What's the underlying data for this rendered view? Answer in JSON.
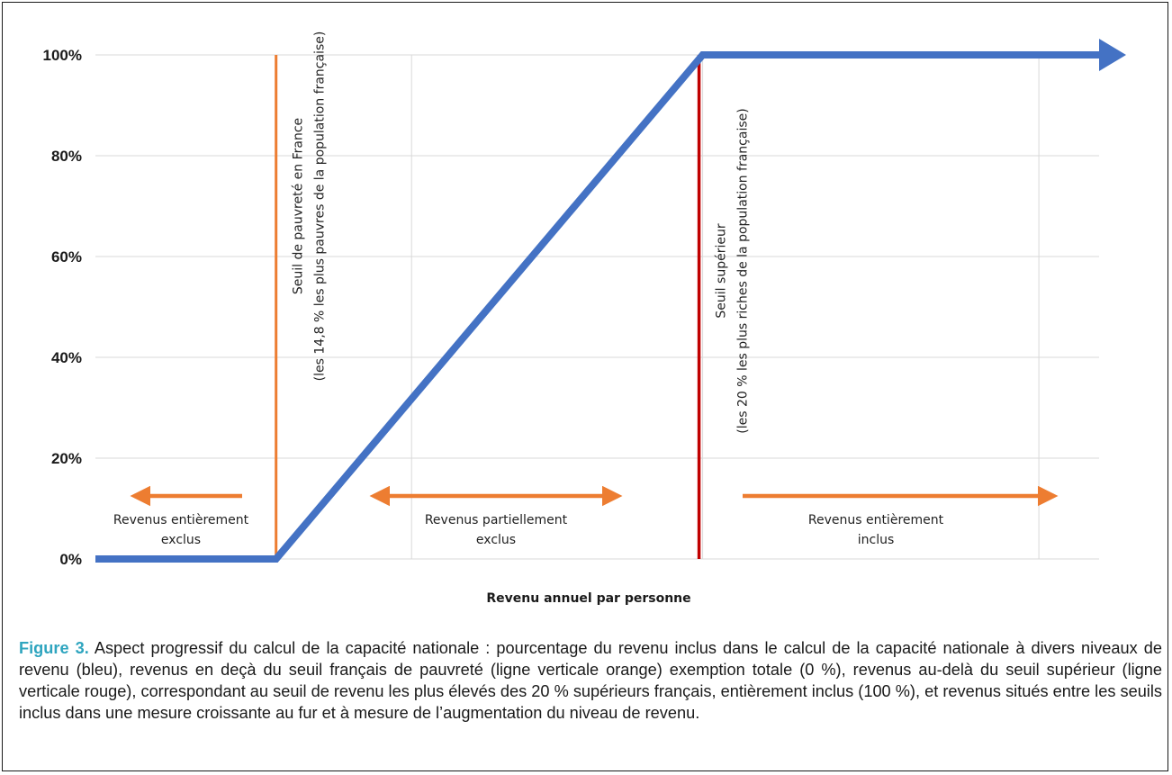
{
  "chart_data": {
    "type": "line",
    "xlabel": "Revenu annuel par personne",
    "ylabel": "",
    "ylim": [
      0,
      100
    ],
    "yticks": [
      "0%",
      "20%",
      "40%",
      "60%",
      "80%",
      "100%"
    ],
    "grid": true,
    "series": [
      {
        "color": "#4472c4",
        "points": [
          {
            "x": 0.0,
            "y": 0
          },
          {
            "x": 0.18,
            "y": 0
          },
          {
            "x": 0.605,
            "y": 100
          },
          {
            "x": 1.0,
            "y": 100
          }
        ]
      }
    ],
    "thresholds": [
      {
        "x": 0.18,
        "color": "#ed7d31",
        "line1": "Seuil de pauvreté en France",
        "line2": "(les 14,8 % les plus pauvres de la population française)"
      },
      {
        "x": 0.605,
        "color": "#c00000",
        "line1": "Seuil supérieur",
        "line2": "(les 20 % les plus riches de la population française)"
      }
    ],
    "regions": [
      {
        "line1": "Revenus entièrement",
        "line2": "exclus",
        "arrow": "left"
      },
      {
        "line1": "Revenus partiellement",
        "line2": "exclus",
        "arrow": "both"
      },
      {
        "line1": "Revenus entièrement",
        "line2": "inclus",
        "arrow": "right"
      }
    ]
  },
  "caption": {
    "label": "Figure 3.",
    "text": " Aspect progressif du calcul de la capacité nationale : pourcentage du revenu inclus dans le calcul de la capacité nationale à divers niveaux de revenu (bleu), revenus en deçà du seuil français de pauvreté (ligne verticale orange) exemption totale (0 %), revenus au-delà du seuil supérieur (ligne verticale rouge), correspondant au seuil de revenu les plus élevés des 20 % supérieurs français, entièrement inclus (100 %), et revenus situés entre les seuils inclus dans une mesure croissante au fur et à mesure de l’augmentation du niveau de revenu."
  },
  "colors": {
    "grid": "#d9d9d9",
    "arrow": "#ed7d31",
    "caption_label": "#2fa5bf"
  }
}
